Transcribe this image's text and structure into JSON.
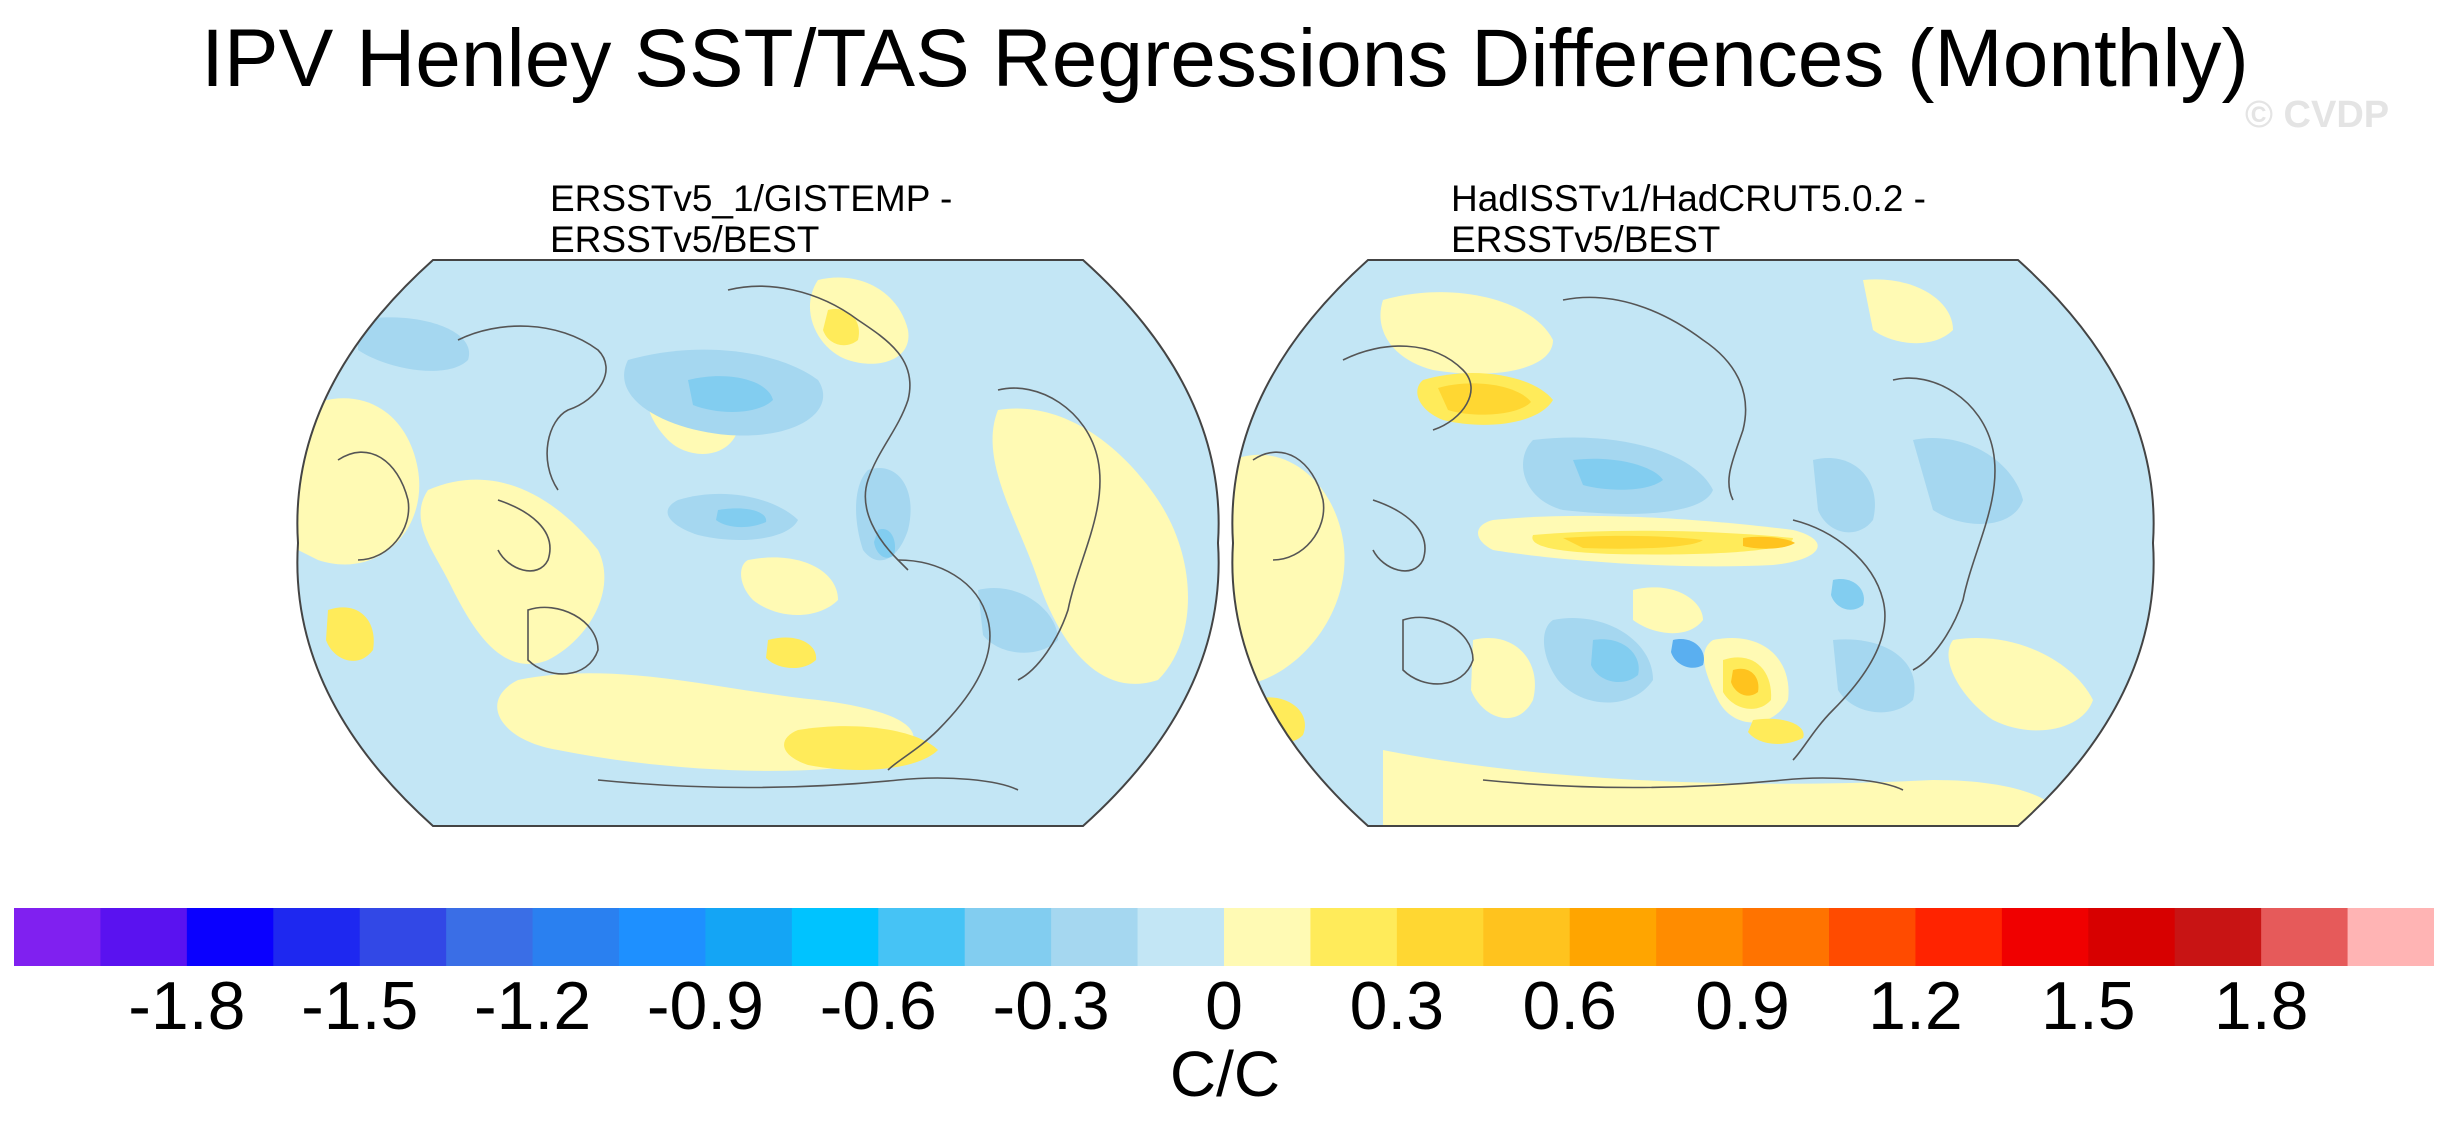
{
  "title": "IPV Henley SST/TAS Regressions Differences (Monthly)",
  "watermark": "© CVDP",
  "chart_data": {
    "type": "heatmap",
    "projection": "Robinson, centered on the Pacific",
    "title": "IPV Henley SST/TAS Regressions Differences (Monthly)",
    "panels": [
      {
        "title_line1": "ERSSTv5_1/GISTEMP -",
        "title_line2": "ERSSTv5/BEST",
        "value_range": [
          -0.6,
          0.6
        ],
        "dominant_values": "mostly -0.3 to 0.15, weak positives near Southern Ocean and Asia"
      },
      {
        "title_line1": "HadISSTv1/HadCRUT5.0.2 -",
        "title_line2": "ERSSTv5/BEST",
        "value_range": [
          -0.6,
          0.9
        ],
        "dominant_values": "noisier field, positive band along equatorial Pacific and North Pacific up to ~0.9"
      }
    ],
    "colorbar": {
      "levels": [
        -2.0,
        -1.8,
        -1.65,
        -1.5,
        -1.35,
        -1.2,
        -1.05,
        -0.9,
        -0.75,
        -0.6,
        -0.45,
        -0.3,
        -0.15,
        0,
        0.15,
        0.3,
        0.45,
        0.6,
        0.75,
        0.9,
        1.05,
        1.2,
        1.35,
        1.5,
        1.65,
        1.8
      ],
      "colors": [
        "#8020f0",
        "#5a12f0",
        "#0a00ff",
        "#1e28f0",
        "#3248e6",
        "#3a6ee6",
        "#2a80f0",
        "#1e90ff",
        "#14a5f5",
        "#00c3ff",
        "#46c3f5",
        "#82cdf0",
        "#a5d7f0",
        "#c3e6f5",
        "#fffab4",
        "#ffeb5a",
        "#ffd732",
        "#ffc31e",
        "#ffa500",
        "#ff8c00",
        "#ff7300",
        "#ff4b00",
        "#ff2300",
        "#f00000",
        "#d70000",
        "#c81414",
        "#e65a5a",
        "#ffb4b4"
      ],
      "tick_labels": [
        "-1.8",
        "-1.5",
        "-1.2",
        "-0.9",
        "-0.6",
        "-0.3",
        "0",
        "0.3",
        "0.6",
        "0.9",
        "1.2",
        "1.5",
        "1.8"
      ],
      "units": "C/C"
    }
  }
}
